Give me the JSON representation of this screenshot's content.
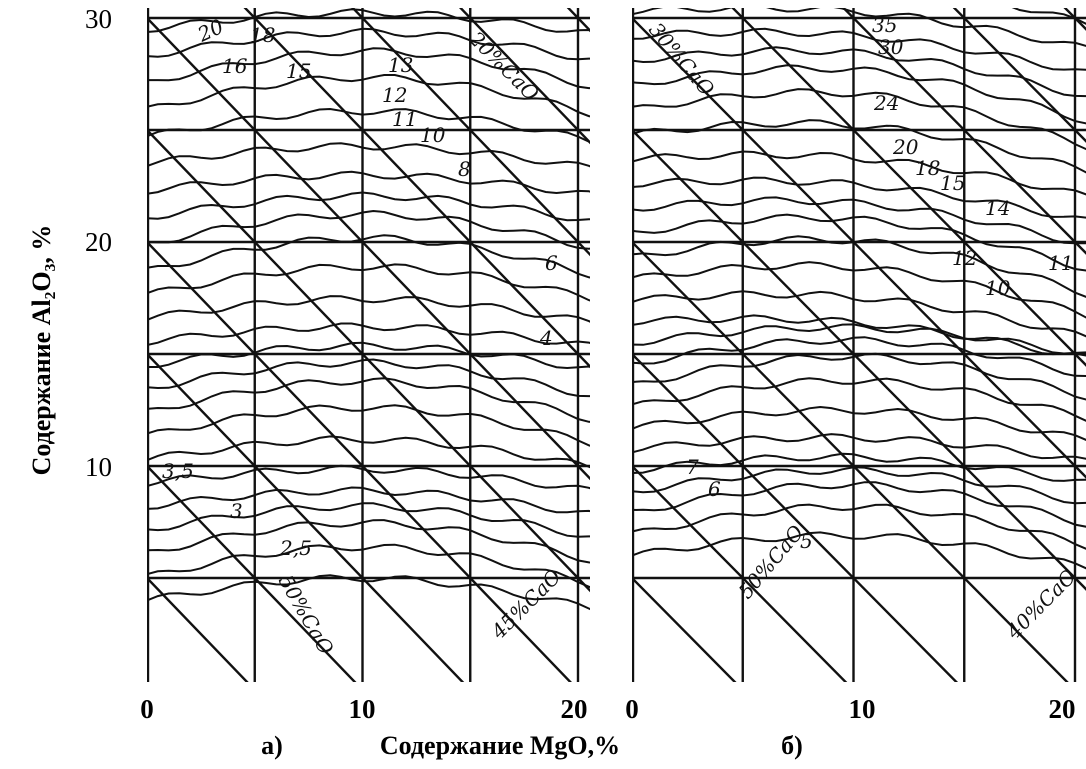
{
  "y_axis": {
    "title": "Содержание Al₂O₃, %",
    "ticks": [
      30,
      20,
      10
    ]
  },
  "x_axis": {
    "title": "Содержание MgO,%"
  },
  "panels": [
    {
      "label": "а)",
      "x_ticks": [
        0,
        10,
        20
      ],
      "isoline_labels": [
        "20",
        "18",
        "16",
        "15",
        "13",
        "12",
        "11",
        "10",
        "8",
        "6",
        "4",
        "3,5",
        "3",
        "2,5",
        "20%CaO",
        "50%CaO",
        "45%CaO"
      ]
    },
    {
      "label": "б)",
      "x_ticks": [
        0,
        10,
        20
      ],
      "isoline_labels": [
        "35",
        "30",
        "24",
        "20",
        "18",
        "15",
        "14",
        "12",
        "11",
        "10",
        "7",
        "6",
        "5",
        "30%CaO",
        "50%CaO",
        "40%CaO"
      ]
    }
  ]
}
